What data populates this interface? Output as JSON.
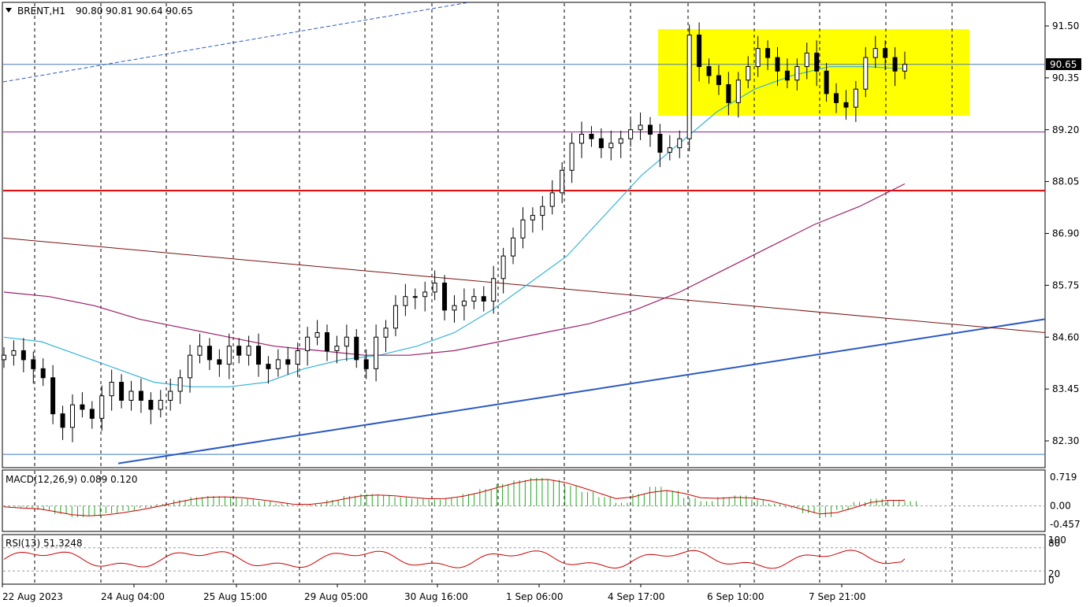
{
  "header": {
    "symbol_label": "BRENT,H1",
    "ohlc": "90.80 90.81 90.64 90.65"
  },
  "price_axis": {
    "ticks": [
      "91.50",
      "90.35",
      "89.20",
      "88.05",
      "86.90",
      "85.75",
      "84.60",
      "83.45",
      "82.30"
    ],
    "current_price_label": "90.65"
  },
  "time_axis": {
    "labels": [
      "22 Aug 2023",
      "24 Aug 04:00",
      "25 Aug 15:00",
      "29 Aug 05:00",
      "30 Aug 16:00",
      "1 Sep 06:00",
      "4 Sep 17:00",
      "6 Sep 10:00",
      "7 Sep 21:00"
    ]
  },
  "macd_panel": {
    "label": "MACD(12,26,9) 0.089 0.120",
    "axis_ticks": [
      "0.719",
      "0.00",
      "-0.457"
    ]
  },
  "rsi_panel": {
    "label": "RSI(13) 51.3248",
    "axis_ticks": [
      "100",
      "80",
      "20",
      "0"
    ]
  },
  "colors": {
    "candle": "#000000",
    "ma_short": "#38b4d8",
    "ma_long": "#9c1f6a",
    "resistance_line": "#e00000",
    "trend_line_up": "#2b59c3",
    "trend_line_down": "#7a1010",
    "zone_fill": "#ffff00",
    "macd_hist": "#22a822",
    "macd_signal": "#cc0000",
    "rsi_line": "#cc0000"
  },
  "chart_data": {
    "type": "candlestick",
    "symbol": "BRENT",
    "timeframe": "H1",
    "ylim": [
      81.8,
      91.9
    ],
    "closes": [
      84.2,
      84.3,
      84.1,
      83.9,
      83.7,
      82.9,
      82.6,
      83.1,
      83.0,
      82.8,
      83.3,
      83.6,
      83.2,
      83.4,
      83.2,
      83.0,
      83.2,
      83.4,
      83.7,
      84.2,
      84.4,
      84.1,
      84.0,
      84.4,
      84.2,
      84.4,
      84.0,
      83.9,
      84.1,
      84.0,
      84.3,
      84.6,
      84.7,
      84.3,
      84.4,
      84.6,
      84.1,
      83.9,
      84.6,
      84.8,
      85.3,
      85.5,
      85.5,
      85.6,
      85.8,
      85.2,
      85.3,
      85.4,
      85.5,
      85.4,
      85.9,
      86.4,
      86.8,
      87.2,
      87.3,
      87.5,
      87.8,
      88.3,
      88.9,
      89.1,
      89.0,
      88.8,
      88.9,
      89.0,
      89.2,
      89.3,
      89.1,
      88.7,
      88.8,
      89.0,
      91.3,
      90.6,
      90.4,
      90.2,
      89.8,
      90.3,
      90.6,
      91.0,
      90.8,
      90.5,
      90.3,
      90.6,
      90.9,
      90.5,
      90.0,
      89.8,
      89.7,
      90.1,
      90.8,
      91.0,
      90.8,
      90.5,
      90.65
    ],
    "moving_averages": [
      {
        "values": [
          84.6,
          84.5,
          84.2,
          83.9,
          83.6,
          83.5,
          83.5,
          83.6,
          83.9,
          84.1,
          84.2,
          84.4,
          84.7,
          85.2,
          85.8,
          86.4,
          87.3,
          88.2,
          88.9,
          89.6,
          90.1,
          90.4,
          90.6,
          90.6,
          90.55
        ]
      },
      {
        "values": [
          85.6,
          85.5,
          85.3,
          85.0,
          84.8,
          84.6,
          84.4,
          84.3,
          84.2,
          84.2,
          84.3,
          84.5,
          84.7,
          84.9,
          85.2,
          85.6,
          86.1,
          86.6,
          87.1,
          87.5,
          88.0
        ]
      }
    ],
    "horizontal_levels": [
      82.0,
      89.15,
      87.85,
      90.65
    ],
    "zone": {
      "price_top": 91.5,
      "price_bottom": 89.6,
      "time_start": "4 Sep 17:00",
      "time_end": "after 7 Sep 21:00"
    },
    "trendlines": [
      {
        "name": "rising support",
        "from_price": 81.8,
        "to_price": 85.0
      },
      {
        "name": "falling resistance",
        "from_price": 86.8,
        "to_price": 84.7
      }
    ],
    "macd": {
      "macd": 0.089,
      "signal": 0.12,
      "ylim": [
        -0.457,
        0.719
      ]
    },
    "rsi": {
      "value": 51.3248,
      "levels": [
        80,
        20
      ],
      "ylim": [
        0,
        100
      ]
    }
  }
}
